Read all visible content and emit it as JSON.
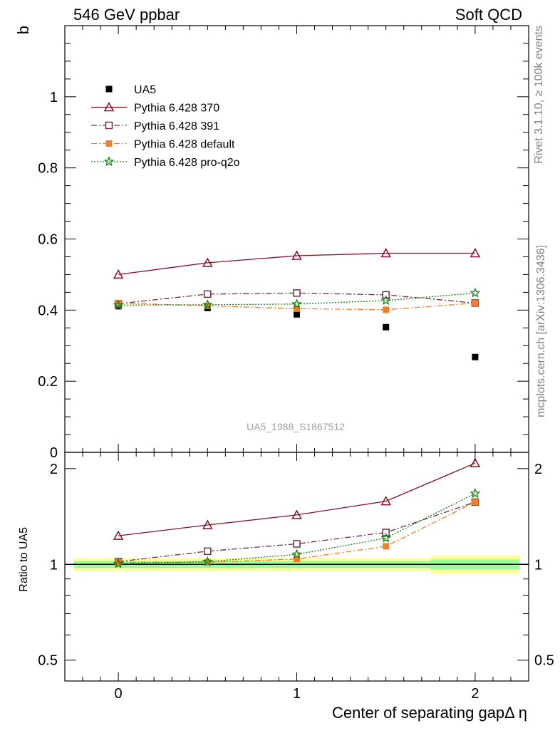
{
  "header": {
    "left": "546 GeV ppbar",
    "right": "Soft QCD"
  },
  "side_labels": {
    "rivet": "Rivet 3.1.10, ≥ 100k events",
    "mcplots": "mcplots.cern.ch [arXiv:1306.3436]"
  },
  "watermark": "UA5_1988_S1867512",
  "chart_data": [
    {
      "type": "line",
      "ylabel": "b",
      "xlabel": "Center of separating gapΔ η",
      "xlim": [
        -0.3,
        2.3
      ],
      "ylim": [
        0,
        1.2
      ],
      "x_ticks": [
        0,
        1,
        2
      ],
      "y_ticks": [
        0,
        0.2,
        0.4,
        0.6,
        0.8,
        1
      ],
      "y_tick_labels": [
        "0",
        "0.2",
        "0.4",
        "0.6",
        "0.8",
        "1"
      ],
      "legend_position": "top-left",
      "x": [
        0,
        0.5,
        1,
        1.5,
        2
      ],
      "series": [
        {
          "name": "UA5",
          "marker": "filled-square",
          "color": "#000000",
          "values": [
            0.411,
            0.406,
            0.388,
            0.352,
            0.268
          ]
        },
        {
          "name": "Pythia 6.428 370",
          "marker": "open-triangle",
          "color": "#8b0f1e",
          "dash": "solid",
          "values": [
            0.5,
            0.533,
            0.553,
            0.56,
            0.56
          ]
        },
        {
          "name": "Pythia 6.428 391",
          "marker": "open-square",
          "color": "#6e3045",
          "dash": "dashdot",
          "values": [
            0.418,
            0.445,
            0.448,
            0.443,
            0.42
          ]
        },
        {
          "name": "Pythia 6.428 default",
          "marker": "filled-square",
          "color": "#f47f24",
          "dash": "dashdot",
          "values": [
            0.42,
            0.412,
            0.404,
            0.401,
            0.42
          ]
        },
        {
          "name": "Pythia 6.428 pro-q2o",
          "marker": "star",
          "color": "#117f11",
          "dash": "dotted",
          "values": [
            0.414,
            0.415,
            0.417,
            0.427,
            0.448
          ]
        }
      ]
    },
    {
      "type": "line",
      "ylabel": "Ratio to UA5",
      "ylim": [
        0.43,
        2.25
      ],
      "scale": "log",
      "y_ticks": [
        0.5,
        1,
        2
      ],
      "y_tick_labels": [
        "0.5",
        "1",
        "2"
      ],
      "x_ticks": [
        0,
        1,
        2
      ],
      "x_tick_labels": [
        "0",
        "1",
        "2"
      ],
      "x": [
        0,
        0.5,
        1,
        1.5,
        2
      ],
      "reference_band": {
        "x_edges": [
          -0.25,
          0.25,
          0.75,
          1.25,
          1.75,
          2.25
        ],
        "yellow": [
          [
            0.955,
            1.046
          ],
          [
            0.955,
            1.046
          ],
          [
            0.955,
            1.046
          ],
          [
            0.955,
            1.046
          ],
          [
            0.935,
            1.07
          ]
        ],
        "green": [
          [
            0.976,
            1.024
          ],
          [
            0.976,
            1.024
          ],
          [
            0.976,
            1.024
          ],
          [
            0.976,
            1.024
          ],
          [
            0.965,
            1.036
          ]
        ]
      },
      "series": [
        {
          "name": "Pythia 6.428 370",
          "color": "#8b0f1e",
          "values": [
            1.23,
            1.33,
            1.43,
            1.58,
            2.08
          ]
        },
        {
          "name": "Pythia 6.428 391",
          "color": "#6e3045",
          "values": [
            1.02,
            1.1,
            1.16,
            1.26,
            1.57
          ]
        },
        {
          "name": "Pythia 6.428 default",
          "color": "#f47f24",
          "values": [
            1.015,
            1.015,
            1.04,
            1.14,
            1.57
          ]
        },
        {
          "name": "Pythia 6.428 pro-q2o",
          "color": "#117f11",
          "values": [
            1.005,
            1.02,
            1.075,
            1.21,
            1.67
          ]
        }
      ]
    }
  ]
}
